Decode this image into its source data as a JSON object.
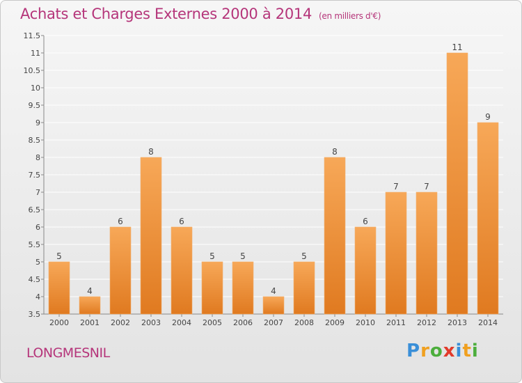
{
  "chart_data": {
    "type": "bar",
    "title": "Achats et Charges Externes 2000 à 2014",
    "subtitle": "(en milliers d'€)",
    "categories": [
      "2000",
      "2001",
      "2002",
      "2003",
      "2004",
      "2005",
      "2006",
      "2007",
      "2008",
      "2009",
      "2010",
      "2011",
      "2012",
      "2013",
      "2014"
    ],
    "values": [
      5,
      4,
      6,
      8,
      6,
      5,
      5,
      4,
      5,
      8,
      6,
      7,
      7,
      11,
      9
    ],
    "data_labels": [
      "5",
      "4",
      "6",
      "8",
      "6",
      "5",
      "5",
      "4",
      "5",
      "8",
      "6",
      "7",
      "7",
      "11",
      "9"
    ],
    "yticks": [
      "3.5",
      "4",
      "4.5",
      "5",
      "5.5",
      "6",
      "6.5",
      "7",
      "7.5",
      "8",
      "8.5",
      "9",
      "9.5",
      "10",
      "10.5",
      "11",
      "11.5"
    ],
    "ylim": [
      3.5,
      11.5
    ],
    "grid": true,
    "colors": {
      "bar_top": "#f7a858",
      "bar_bottom": "#e07a20",
      "grid": "#ffffff",
      "text": "#444444"
    }
  },
  "footer": {
    "location": "LONGMESNIL",
    "logo_letters": [
      "P",
      "r",
      "o",
      "x",
      "i",
      "t",
      "i"
    ],
    "logo_colors": [
      "#3a8fd8",
      "#f0a020",
      "#4cae3c",
      "#e23a2a",
      "#3a8fd8",
      "#f0a020",
      "#4cae3c"
    ]
  }
}
